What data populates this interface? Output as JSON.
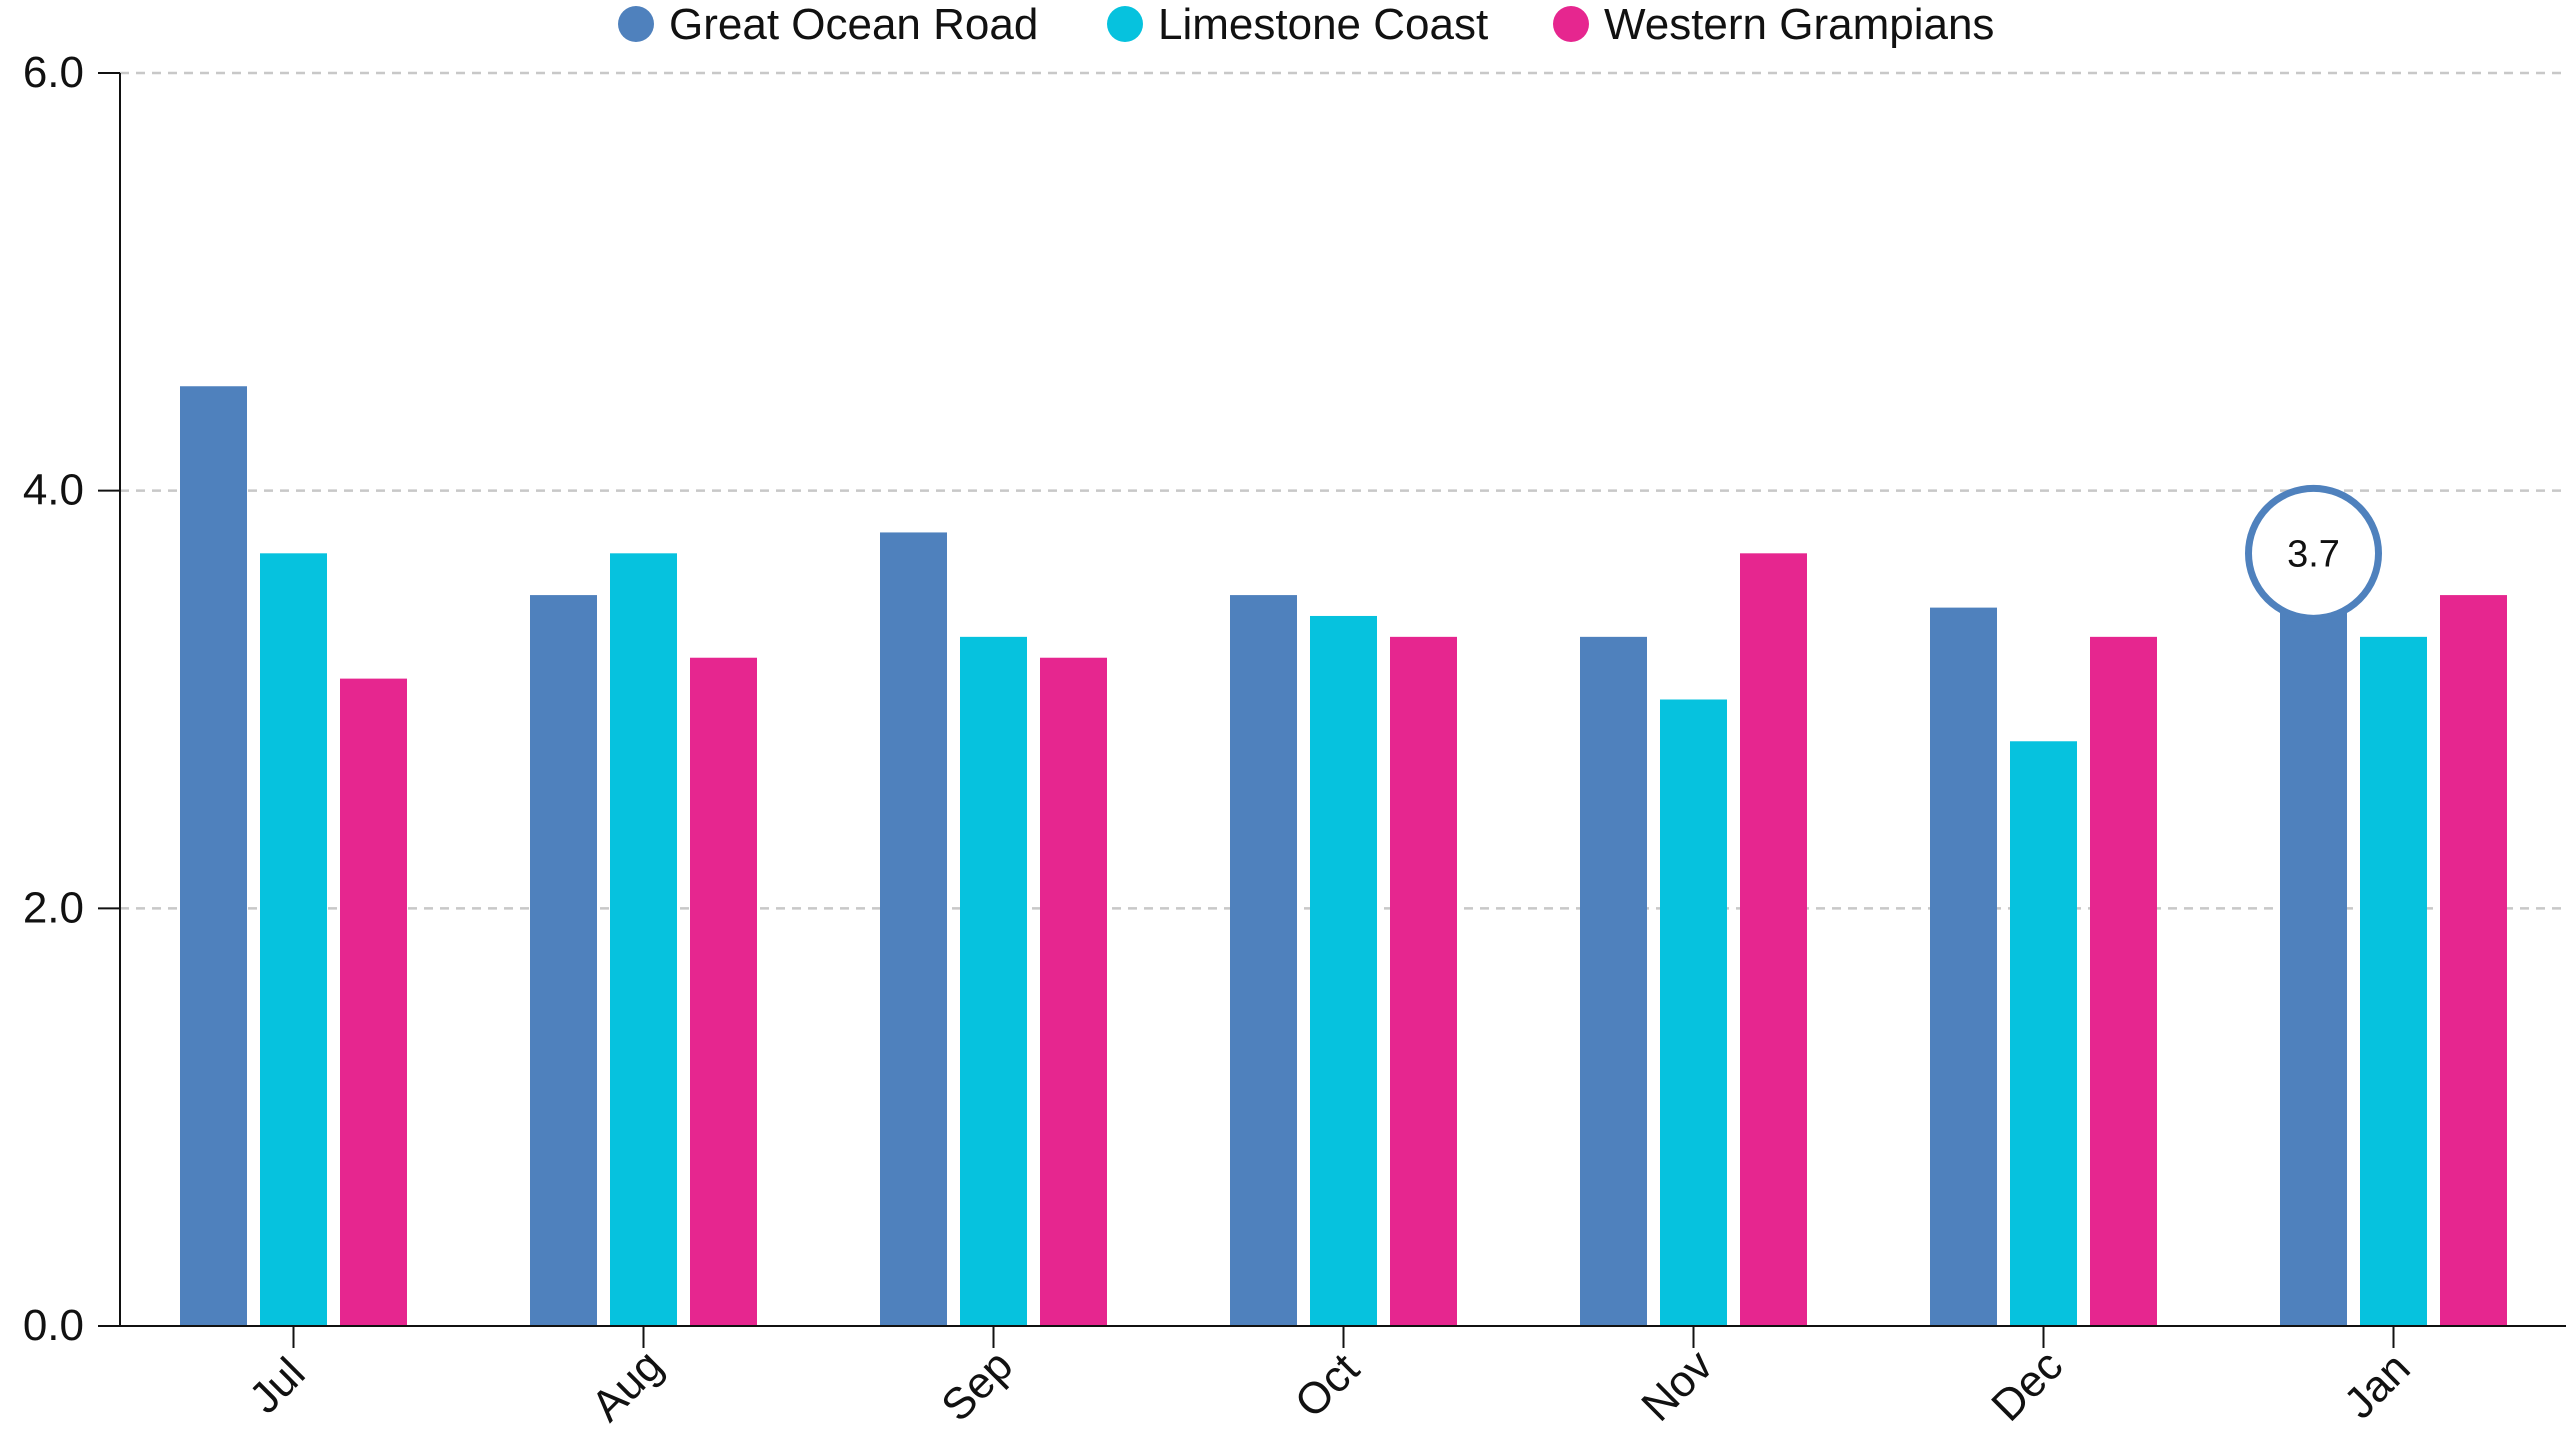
{
  "chart_data": {
    "type": "bar",
    "categories": [
      "Jul",
      "Aug",
      "Sep",
      "Oct",
      "Nov",
      "Dec",
      "Jan"
    ],
    "series": [
      {
        "name": "Great Ocean Road",
        "color": "#4f81bd",
        "values": [
          4.5,
          3.5,
          3.8,
          3.5,
          3.3,
          3.44,
          3.7
        ]
      },
      {
        "name": "Limestone Coast",
        "color": "#06c2de",
        "values": [
          3.7,
          3.7,
          3.3,
          3.4,
          3.0,
          2.8,
          3.3
        ]
      },
      {
        "name": "Western Grampians",
        "color": "#e6268f",
        "values": [
          3.1,
          3.2,
          3.2,
          3.3,
          3.7,
          3.3,
          3.5
        ]
      }
    ],
    "ylim": [
      0,
      6
    ],
    "yticks": [
      "0.0",
      "2.0",
      "4.0",
      "6.0"
    ],
    "ytick_values": [
      0,
      2,
      4,
      6
    ],
    "grid": "horizontal dashed",
    "legend_position": "top-center",
    "highlight": {
      "series": "Great Ocean Road",
      "category": "Jan",
      "label": "3.7"
    },
    "title": "",
    "xlabel": "",
    "ylabel": ""
  }
}
